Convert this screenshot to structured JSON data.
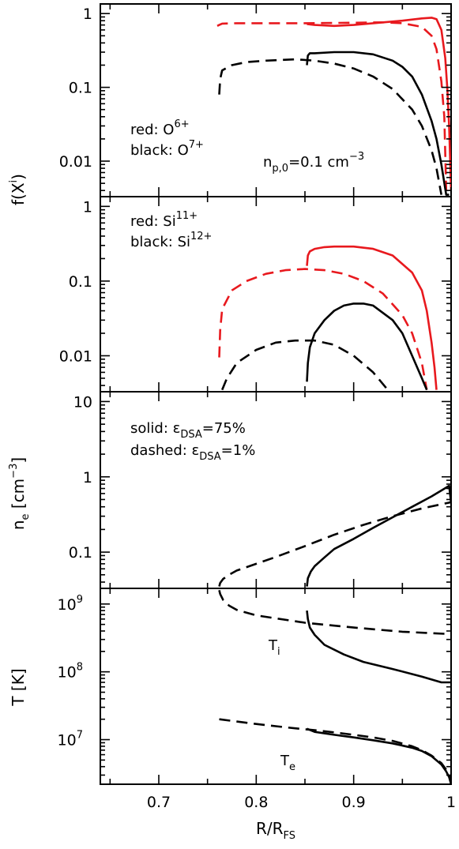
{
  "chart_data": {
    "type": "line",
    "layout": "4 vertically stacked panels sharing x axis",
    "xlabel": "R/R",
    "xlabel_sub": "FS",
    "xlim": [
      0.64,
      1.0
    ],
    "xticks": [
      0.7,
      0.8,
      0.9,
      1.0
    ],
    "xtick_labels": [
      "0.7",
      "0.8",
      "0.9",
      "1"
    ],
    "colors": {
      "red": "#e8191e",
      "black": "#000000"
    },
    "linestyles": {
      "solid": "ε_DSA=75%",
      "dashed": "ε_DSA=1%"
    },
    "panels": [
      {
        "id": "oxygen",
        "ylabel": "f(X",
        "ylabel_sup": "i",
        "ylabel_end": ")",
        "yscale": "log",
        "ylim": [
          0.0033,
          1.35
        ],
        "yticks": [
          1,
          0.1,
          0.01
        ],
        "ytick_labels": [
          "1",
          "0.1",
          "0.01"
        ],
        "annotations": [
          {
            "prefix": "red:  O",
            "sup": "6+"
          },
          {
            "prefix": "black: O",
            "sup": "7+"
          },
          {
            "prefix": "n",
            "sub": "p,0",
            "suffix": "=0.1 cm",
            "sup": "−3"
          }
        ],
        "series": [
          {
            "color": "red",
            "style": "dashed",
            "x": [
              0.76,
              0.762,
              0.765,
              0.78,
              0.8,
              0.85,
              0.9,
              0.93,
              0.95,
              0.97,
              0.98,
              0.985,
              0.99,
              0.993,
              0.995
            ],
            "y": [
              0.68,
              0.7,
              0.73,
              0.74,
              0.74,
              0.74,
              0.75,
              0.76,
              0.74,
              0.66,
              0.5,
              0.33,
              0.12,
              0.04,
              0.004
            ]
          },
          {
            "color": "red",
            "style": "solid",
            "x": [
              0.852,
              0.86,
              0.88,
              0.9,
              0.92,
              0.95,
              0.97,
              0.98,
              0.985,
              0.99,
              0.994,
              0.996,
              0.998,
              1.0
            ],
            "y": [
              0.72,
              0.7,
              0.68,
              0.7,
              0.74,
              0.8,
              0.86,
              0.88,
              0.84,
              0.6,
              0.25,
              0.1,
              0.03,
              0.004
            ]
          },
          {
            "color": "black",
            "style": "dashed",
            "x": [
              0.762,
              0.763,
              0.765,
              0.775,
              0.79,
              0.81,
              0.84,
              0.86,
              0.88,
              0.9,
              0.92,
              0.94,
              0.96,
              0.97,
              0.98,
              0.985,
              0.99
            ],
            "y": [
              0.08,
              0.13,
              0.17,
              0.2,
              0.22,
              0.23,
              0.24,
              0.23,
              0.21,
              0.18,
              0.14,
              0.095,
              0.05,
              0.03,
              0.014,
              0.008,
              0.0035
            ]
          },
          {
            "color": "black",
            "style": "solid",
            "x": [
              0.852,
              0.853,
              0.855,
              0.86,
              0.88,
              0.9,
              0.92,
              0.94,
              0.95,
              0.96,
              0.97,
              0.98,
              0.985,
              0.99,
              0.995,
              0.998
            ],
            "y": [
              0.2,
              0.27,
              0.29,
              0.29,
              0.3,
              0.3,
              0.28,
              0.23,
              0.19,
              0.14,
              0.08,
              0.035,
              0.02,
              0.009,
              0.0035,
              0.0035
            ]
          }
        ]
      },
      {
        "id": "silicon",
        "ylabel": "",
        "yscale": "log",
        "ylim": [
          0.0033,
          1.35
        ],
        "yticks": [
          1,
          0.1,
          0.01
        ],
        "ytick_labels": [
          "1",
          "0.1",
          "0.01"
        ],
        "annotations": [
          {
            "prefix": "red:  Si",
            "sup": "11+"
          },
          {
            "prefix": "black: Si",
            "sup": "12+"
          }
        ],
        "series": [
          {
            "color": "red",
            "style": "dashed",
            "x": [
              0.762,
              0.763,
              0.765,
              0.775,
              0.79,
              0.81,
              0.83,
              0.85,
              0.87,
              0.89,
              0.91,
              0.93,
              0.95,
              0.96,
              0.97,
              0.975
            ],
            "y": [
              0.0095,
              0.022,
              0.042,
              0.075,
              0.1,
              0.125,
              0.14,
              0.145,
              0.14,
              0.125,
              0.1,
              0.068,
              0.035,
              0.02,
              0.008,
              0.0035
            ]
          },
          {
            "color": "red",
            "style": "solid",
            "x": [
              0.852,
              0.853,
              0.855,
              0.86,
              0.87,
              0.88,
              0.9,
              0.92,
              0.94,
              0.96,
              0.97,
              0.975,
              0.98,
              0.983,
              0.985
            ],
            "y": [
              0.16,
              0.22,
              0.25,
              0.27,
              0.285,
              0.29,
              0.29,
              0.27,
              0.22,
              0.13,
              0.075,
              0.04,
              0.015,
              0.007,
              0.0035
            ]
          },
          {
            "color": "black",
            "style": "dashed",
            "x": [
              0.765,
              0.77,
              0.78,
              0.8,
              0.82,
              0.84,
              0.86,
              0.88,
              0.9,
              0.92,
              0.935
            ],
            "y": [
              0.0035,
              0.005,
              0.008,
              0.012,
              0.015,
              0.016,
              0.016,
              0.014,
              0.01,
              0.006,
              0.0035
            ]
          },
          {
            "color": "black",
            "style": "solid",
            "x": [
              0.852,
              0.853,
              0.855,
              0.86,
              0.87,
              0.88,
              0.89,
              0.9,
              0.91,
              0.92,
              0.94,
              0.95,
              0.96,
              0.97,
              0.975
            ],
            "y": [
              0.0045,
              0.008,
              0.013,
              0.02,
              0.03,
              0.04,
              0.047,
              0.05,
              0.05,
              0.047,
              0.03,
              0.02,
              0.01,
              0.005,
              0.0035
            ]
          }
        ]
      },
      {
        "id": "density",
        "ylabel": "n",
        "ylabel_sub": "e",
        "ylabel_end": " [cm",
        "ylabel_sup": "−3",
        "ylabel_close": "]",
        "yscale": "log",
        "ylim": [
          0.033,
          13.5
        ],
        "yticks": [
          10,
          1,
          0.1
        ],
        "ytick_labels": [
          "10",
          "1",
          "0.1"
        ],
        "annotations": [
          {
            "prefix": "solid:    ε",
            "sub": "DSA",
            "suffix": "=75%"
          },
          {
            "prefix": "dashed: ε",
            "sub": "DSA",
            "suffix": "=1%"
          }
        ],
        "series": [
          {
            "color": "black",
            "style": "dashed",
            "x": [
              0.762,
              0.763,
              0.766,
              0.772,
              0.78,
              0.8,
              0.82,
              0.85,
              0.88,
              0.91,
              0.94,
              0.97,
              1.0
            ],
            "y": [
              0.035,
              0.039,
              0.044,
              0.05,
              0.057,
              0.07,
              0.086,
              0.12,
              0.17,
              0.23,
              0.3,
              0.38,
              0.46
            ]
          },
          {
            "color": "black",
            "style": "solid",
            "x": [
              0.852,
              0.853,
              0.856,
              0.86,
              0.87,
              0.88,
              0.9,
              0.92,
              0.94,
              0.96,
              0.98,
              0.995,
              0.998,
              1.0
            ],
            "y": [
              0.035,
              0.045,
              0.055,
              0.065,
              0.085,
              0.11,
              0.15,
              0.21,
              0.29,
              0.4,
              0.55,
              0.72,
              0.76,
              0.45
            ]
          }
        ]
      },
      {
        "id": "temperature",
        "ylabel": "T [K]",
        "yscale": "log",
        "ylim": [
          2200000.0,
          1700000000.0
        ],
        "yticks": [
          1000000000.0,
          100000000.0,
          10000000.0
        ],
        "ytick_labels": [
          {
            "base": "10",
            "exp": "9"
          },
          {
            "base": "10",
            "exp": "8"
          },
          {
            "base": "10",
            "exp": "7"
          }
        ],
        "annotations": [
          {
            "prefix": "T",
            "sub": "i"
          },
          {
            "prefix": "T",
            "sub": "e"
          }
        ],
        "series": [
          {
            "color": "black",
            "style": "dashed",
            "x": [
              0.762,
              0.763,
              0.766,
              0.772,
              0.78,
              0.8,
              0.85,
              0.9,
              0.95,
              1.0
            ],
            "y": [
              1600000000.0,
              1400000000.0,
              1150000000.0,
              950000000.0,
              820000000.0,
              680000000.0,
              530000000.0,
              450000000.0,
              390000000.0,
              360000000.0
            ]
          },
          {
            "color": "black",
            "style": "solid",
            "x": [
              0.852,
              0.853,
              0.855,
              0.86,
              0.87,
              0.89,
              0.91,
              0.94,
              0.97,
              0.99,
              1.0
            ],
            "y": [
              800000000.0,
              600000000.0,
              450000000.0,
              350000000.0,
              250000000.0,
              180000000.0,
              140000000.0,
              110000000.0,
              85000000.0,
              70000000.0,
              70000000.0
            ]
          },
          {
            "color": "black",
            "style": "dashed",
            "x": [
              0.762,
              0.78,
              0.8,
              0.82,
              0.84,
              0.86,
              0.88,
              0.9,
              0.92,
              0.94,
              0.96,
              0.97,
              0.98,
              0.99,
              0.995,
              0.998,
              1.0
            ],
            "y": [
              20000000.0,
              18500000.0,
              17000000.0,
              15800000.0,
              14700000.0,
              13800000.0,
              12800000.0,
              11800000.0,
              10800000.0,
              9600000.0,
              8000000.0,
              7000000.0,
              5800000.0,
              4500000.0,
              3600000.0,
              3000000.0,
              2300000.0
            ]
          },
          {
            "color": "black",
            "style": "solid",
            "x": [
              0.852,
              0.86,
              0.88,
              0.9,
              0.92,
              0.94,
              0.96,
              0.97,
              0.98,
              0.99,
              0.995,
              0.998,
              1.0
            ],
            "y": [
              14500000.0,
              13000000.0,
              11800000.0,
              10800000.0,
              9800000.0,
              8800000.0,
              7600000.0,
              6800000.0,
              5700000.0,
              4300000.0,
              3400000.0,
              2800000.0,
              2200000.0
            ]
          }
        ]
      }
    ]
  }
}
